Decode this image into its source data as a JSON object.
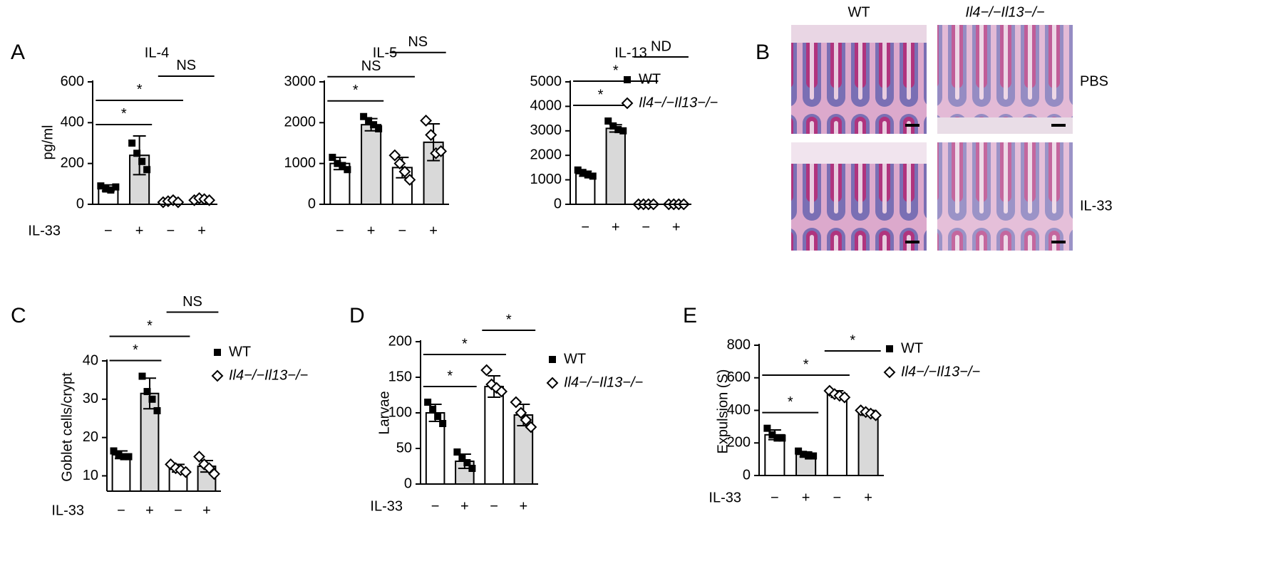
{
  "chart_data": [
    {
      "type": "bar",
      "panel": "A",
      "title": "IL-4",
      "y_label": "pg/ml",
      "x_row_label": "IL-33",
      "categories": [
        "−",
        "+",
        "−",
        "+"
      ],
      "bar_colors": [
        "#ffffff",
        "#d9d9d9",
        "#ffffff",
        "#d9d9d9"
      ],
      "ylim": [
        0,
        600
      ],
      "yticks": [
        0,
        200,
        400,
        600
      ],
      "series": [
        {
          "marker": "square",
          "color": "#000000",
          "values": [
            80,
            240,
            null,
            null
          ],
          "errors": [
            15,
            95,
            null,
            null
          ],
          "points": [
            [
              90,
              75,
              70,
              85
            ],
            [
              300,
              250,
              210,
              170
            ],
            null,
            null
          ]
        },
        {
          "marker": "diamond",
          "color": "#000000",
          "values": [
            null,
            null,
            15,
            25
          ],
          "errors": [
            null,
            null,
            8,
            10
          ],
          "points": [
            null,
            null,
            [
              10,
              15,
              20,
              10
            ],
            [
              20,
              30,
              25,
              20
            ]
          ]
        }
      ],
      "annotations": [
        {
          "text": "*",
          "from": 0,
          "to": 1
        },
        {
          "text": "*",
          "from": 0,
          "to": 2
        },
        {
          "text": "NS",
          "from": 2,
          "to": 3
        }
      ]
    },
    {
      "type": "bar",
      "title": "IL-5",
      "categories": [
        "−",
        "+",
        "−",
        "+"
      ],
      "bar_colors": [
        "#ffffff",
        "#d9d9d9",
        "#ffffff",
        "#d9d9d9"
      ],
      "ylim": [
        0,
        3000
      ],
      "yticks": [
        0,
        1000,
        2000,
        3000
      ],
      "series": [
        {
          "marker": "square",
          "color": "#000000",
          "values": [
            1000,
            1950,
            null,
            null
          ],
          "errors": [
            150,
            150,
            null,
            null
          ],
          "points": [
            [
              1150,
              1000,
              950,
              850
            ],
            [
              2150,
              2050,
              1950,
              1850
            ],
            null,
            null
          ]
        },
        {
          "marker": "diamond",
          "color": "#000000",
          "values": [
            null,
            null,
            900,
            1520
          ],
          "errors": [
            null,
            null,
            250,
            450
          ],
          "points": [
            null,
            null,
            [
              1200,
              1000,
              800,
              600
            ],
            [
              2050,
              1700,
              1250,
              1300
            ]
          ]
        }
      ],
      "annotations": [
        {
          "text": "*",
          "from": 0,
          "to": 1
        },
        {
          "text": "NS",
          "from": 0,
          "to": 2
        },
        {
          "text": "NS",
          "from": 2,
          "to": 3
        }
      ]
    },
    {
      "type": "bar",
      "title": "IL-13",
      "categories": [
        "−",
        "+",
        "−",
        "+"
      ],
      "bar_colors": [
        "#ffffff",
        "#d9d9d9",
        "#ffffff",
        "#d9d9d9"
      ],
      "ylim": [
        0,
        5000
      ],
      "yticks": [
        0,
        1000,
        2000,
        3000,
        4000,
        5000
      ],
      "series": [
        {
          "name": "WT",
          "marker": "square",
          "color": "#000000",
          "values": [
            1250,
            3100,
            null,
            null
          ],
          "errors": [
            100,
            150,
            null,
            null
          ],
          "points": [
            [
              1400,
              1300,
              1200,
              1150
            ],
            [
              3400,
              3200,
              3050,
              3000
            ],
            null,
            null
          ]
        },
        {
          "name": "Il4−/−Il13−/−",
          "marker": "diamond",
          "color": "#000000",
          "values": [
            null,
            null,
            0,
            0
          ],
          "errors": [
            null,
            null,
            0,
            0
          ],
          "points": [
            null,
            null,
            [
              0,
              0,
              0,
              0
            ],
            [
              0,
              0,
              0,
              0
            ]
          ]
        }
      ],
      "annotations": [
        {
          "text": "*",
          "from": 0,
          "to": 1
        },
        {
          "text": "*",
          "from": 0,
          "to": 2
        },
        {
          "text": "ND",
          "from": 2,
          "to": 3
        }
      ]
    },
    {
      "type": "bar",
      "panel": "C",
      "y_label": "Goblet cells/crypt",
      "x_row_label": "IL-33",
      "categories": [
        "−",
        "+",
        "−",
        "+"
      ],
      "bar_colors": [
        "#ffffff",
        "#d9d9d9",
        "#ffffff",
        "#d9d9d9"
      ],
      "ylim": [
        6,
        40
      ],
      "yticks": [
        10,
        20,
        30,
        40
      ],
      "series": [
        {
          "name": "WT",
          "marker": "square",
          "color": "#000000",
          "values": [
            15.5,
            31.5,
            null,
            null
          ],
          "errors": [
            1,
            4,
            null,
            null
          ],
          "points": [
            [
              16.5,
              15.5,
              15,
              15
            ],
            [
              36,
              32,
              30,
              27
            ],
            null,
            null
          ]
        },
        {
          "name": "Il4−/−Il13−/−",
          "marker": "diamond",
          "color": "#000000",
          "values": [
            null,
            null,
            12,
            12.5
          ],
          "errors": [
            null,
            null,
            1,
            1.5
          ],
          "points": [
            null,
            null,
            [
              13,
              12,
              11.5,
              11
            ],
            [
              15,
              13,
              12,
              10.5
            ]
          ]
        }
      ],
      "annotations": [
        {
          "text": "*",
          "from": 0,
          "to": 1
        },
        {
          "text": "*",
          "from": 0,
          "to": 2
        },
        {
          "text": "NS",
          "from": 2,
          "to": 3
        }
      ]
    },
    {
      "type": "bar",
      "panel": "D",
      "y_label": "Larvae",
      "x_row_label": "IL-33",
      "categories": [
        "−",
        "+",
        "−",
        "+"
      ],
      "bar_colors": [
        "#ffffff",
        "#d9d9d9",
        "#ffffff",
        "#d9d9d9"
      ],
      "ylim": [
        0,
        200
      ],
      "yticks": [
        0,
        50,
        100,
        150,
        200
      ],
      "series": [
        {
          "name": "WT",
          "marker": "square",
          "color": "#000000",
          "values": [
            100,
            32,
            null,
            null
          ],
          "errors": [
            12,
            10,
            null,
            null
          ],
          "points": [
            [
              115,
              105,
              95,
              85
            ],
            [
              45,
              38,
              30,
              22
            ],
            null,
            null
          ]
        },
        {
          "name": "Il4−/−Il13−/−",
          "marker": "diamond",
          "color": "#000000",
          "values": [
            null,
            null,
            137,
            97
          ],
          "errors": [
            null,
            null,
            15,
            15
          ],
          "points": [
            null,
            null,
            [
              160,
              140,
              135,
              130
            ],
            [
              115,
              100,
              90,
              80
            ]
          ]
        }
      ],
      "annotations": [
        {
          "text": "*",
          "from": 0,
          "to": 1
        },
        {
          "text": "*",
          "from": 0,
          "to": 2
        },
        {
          "text": "*",
          "from": 2,
          "to": 3
        }
      ]
    },
    {
      "type": "bar",
      "panel": "E",
      "y_label": "Expulsion (S)",
      "x_row_label": "IL-33",
      "categories": [
        "−",
        "+",
        "−",
        "+"
      ],
      "bar_colors": [
        "#ffffff",
        "#d9d9d9",
        "#ffffff",
        "#d9d9d9"
      ],
      "ylim": [
        0,
        800
      ],
      "yticks": [
        0,
        200,
        400,
        600,
        800
      ],
      "series": [
        {
          "name": "WT",
          "marker": "square",
          "color": "#000000",
          "values": [
            250,
            130,
            null,
            null
          ],
          "errors": [
            30,
            15,
            null,
            null
          ],
          "points": [
            [
              290,
              250,
              230,
              230
            ],
            [
              150,
              130,
              120,
              120
            ],
            null,
            null
          ]
        },
        {
          "name": "Il4−/−Il13−/−",
          "marker": "diamond",
          "color": "#000000",
          "values": [
            null,
            null,
            500,
            385
          ],
          "errors": [
            null,
            null,
            20,
            15
          ],
          "points": [
            null,
            null,
            [
              520,
              500,
              490,
              480
            ],
            [
              400,
              390,
              380,
              370
            ]
          ]
        }
      ],
      "annotations": [
        {
          "text": "*",
          "from": 0,
          "to": 1
        },
        {
          "text": "*",
          "from": 0,
          "to": 2
        },
        {
          "text": "*",
          "from": 2,
          "to": 3
        }
      ]
    }
  ],
  "histology": {
    "panel": "B",
    "columns": [
      "WT",
      "Il4−/−Il13−/−"
    ],
    "rows": [
      "PBS",
      "IL-33"
    ]
  }
}
